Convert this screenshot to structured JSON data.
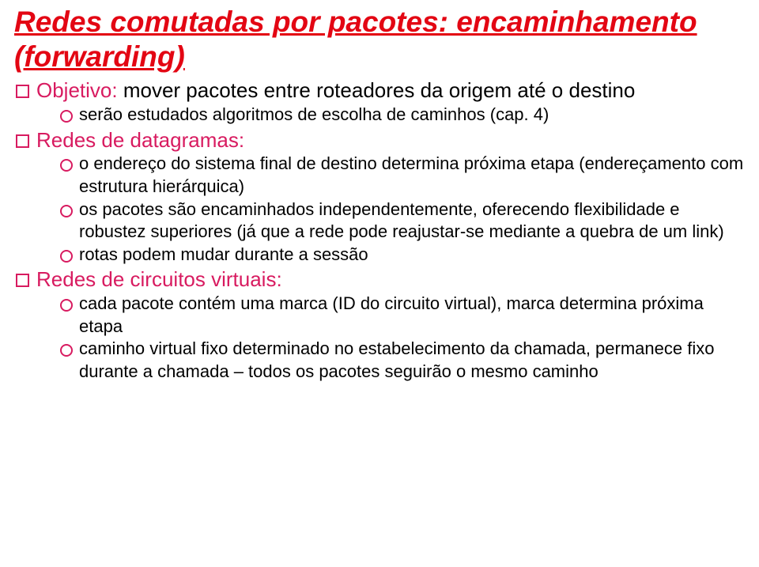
{
  "title_line1": "Redes comutadas por pacotes: encaminhamento",
  "title_line2": "(forwarding)",
  "items": [
    {
      "lead": "Objetivo:",
      "rest": " mover pacotes entre roteadores da origem até o destino",
      "subs": [
        "serão estudados algoritmos de escolha de caminhos (cap. 4)"
      ]
    },
    {
      "lead": "Redes de datagramas:",
      "rest": "",
      "subs": [
        "o endereço do sistema final  de destino determina próxima etapa (endereçamento com estrutura hierárquica)",
        "os pacotes são encaminhados independentemente, oferecendo flexibilidade e robustez superiores (já que a rede pode reajustar-se mediante a quebra de um link)",
        "rotas podem mudar durante a sessão"
      ]
    },
    {
      "lead": "Redes de circuitos virtuais:",
      "rest": "",
      "subs": [
        "cada pacote contém uma marca (ID do circuito virtual), marca determina próxima etapa",
        "caminho virtual fixo determinado no estabelecimento da chamada, permanece fixo durante a chamada – todos os pacotes seguirão o mesmo caminho"
      ]
    }
  ]
}
